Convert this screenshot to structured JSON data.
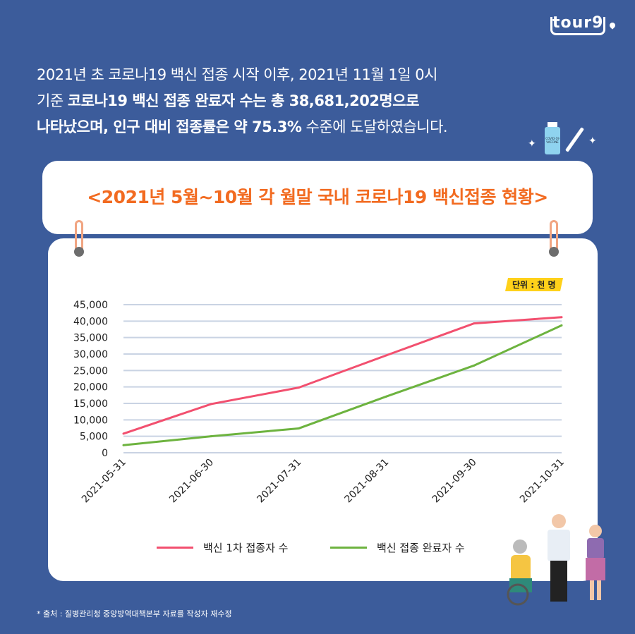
{
  "logo": "tour9",
  "intro": {
    "line1": "2021년 초 코로나19 백신 접종 시작 이후, 2021년 11월 1일 0시",
    "line2_plain": "기준 ",
    "line2_bold": "코로나19 백신 접종 완료자 수는 총 38,681,202명으로",
    "line3_bold": "나타났으며, 인구 대비 접종률은 약 75.3%",
    "line3_plain": " 수준에 도달하였습니다."
  },
  "vial_label": "COVID-19 VACCINE",
  "unit_label": "단위 : 천 명",
  "source": "* 출처 : 질병관리청 중앙방역대책본부 자료를 작성자 재수정",
  "colors": {
    "background": "#3c5c9b",
    "title": "#f26b21",
    "series1": "#f2506f",
    "series2": "#6db33f",
    "grid": "#c9d3e3"
  },
  "chart_data": {
    "type": "line",
    "title": "<2021년 5월~10월 각 월말 국내 코로나19 백신접종 현황>",
    "categories": [
      "2021-05-31",
      "2021-06-30",
      "2021-07-31",
      "2021-08-31",
      "2021-09-30",
      "2021-10-31"
    ],
    "ylim": [
      0,
      45000
    ],
    "yticks": [
      "0",
      "5,000",
      "10,000",
      "15,000",
      "20,000",
      "25,000",
      "30,000",
      "35,000",
      "40,000",
      "45,000"
    ],
    "grid": true,
    "legend_position": "bottom",
    "series": [
      {
        "name": "백신 1차 접종자 수",
        "values": [
          5800,
          14800,
          19800,
          29600,
          39300,
          41200
        ]
      },
      {
        "name": "백신 접종 완료자 수",
        "values": [
          2300,
          5000,
          7400,
          17100,
          26500,
          38700
        ]
      }
    ]
  }
}
